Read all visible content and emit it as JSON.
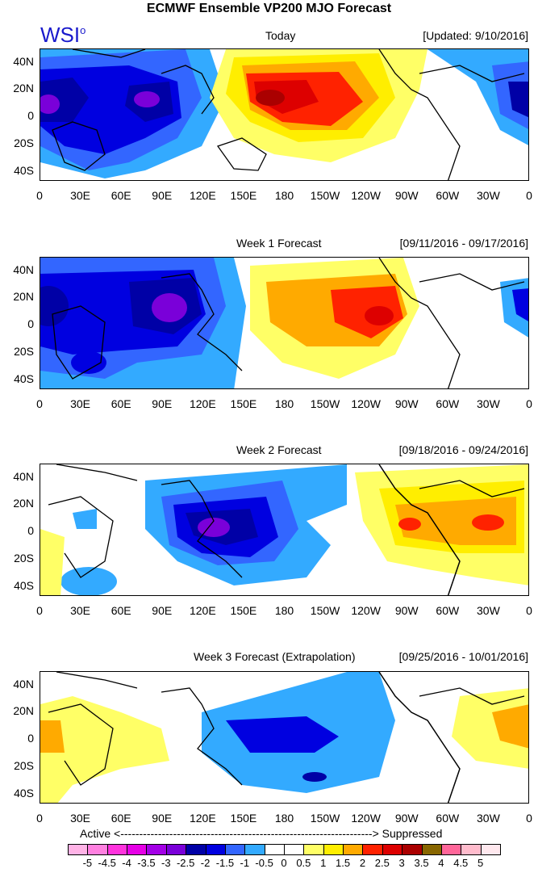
{
  "title": "ECMWF Ensemble VP200 MJO Forecast",
  "logo": {
    "text": "WSI",
    "mark": "o"
  },
  "lat_labels": [
    "40N",
    "20N",
    "0",
    "20S",
    "40S"
  ],
  "lon_labels": [
    "0",
    "30E",
    "60E",
    "90E",
    "120E",
    "150E",
    "180",
    "150W",
    "120W",
    "90W",
    "60W",
    "30W",
    "0"
  ],
  "panels": [
    {
      "title": "Today",
      "date": "[Updated: 9/10/2016]"
    },
    {
      "title": "Week 1 Forecast",
      "date": "[09/11/2016 - 09/17/2016]"
    },
    {
      "title": "Week 2 Forecast",
      "date": "[09/18/2016 - 09/24/2016]"
    },
    {
      "title": "Week 3 Forecast (Extrapolation)",
      "date": "[09/25/2016 - 10/01/2016]"
    }
  ],
  "axis_note": {
    "left": "Active <",
    "dashes": "-------------------------------------------------------------------",
    "right": "> Suppressed"
  },
  "colorbar": {
    "labels": [
      "-5",
      "-4.5",
      "-4",
      "-3.5",
      "-3",
      "-2.5",
      "-2",
      "-1.5",
      "-1",
      "-0.5",
      "0",
      "0.5",
      "1",
      "1.5",
      "2",
      "2.5",
      "3",
      "3.5",
      "4",
      "4.5",
      "5"
    ],
    "colors": [
      "#ffb3e6",
      "#ff80e0",
      "#ff33dd",
      "#e600e6",
      "#a300e6",
      "#7a00d9",
      "#0000a6",
      "#0000e0",
      "#3366ff",
      "#33aaff",
      "#ffffff",
      "#ffffff",
      "#ffff66",
      "#ffee00",
      "#ffaa00",
      "#ff2200",
      "#dd0000",
      "#aa0000",
      "#886600",
      "#ff6699",
      "#ffbbcc",
      "#ffe8ee"
    ]
  }
}
